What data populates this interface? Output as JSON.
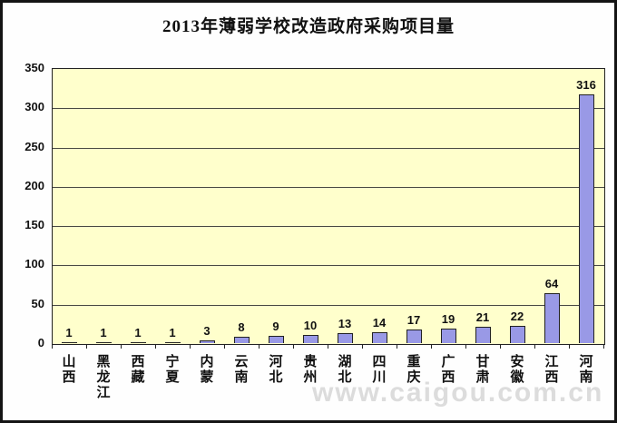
{
  "title": "2013年薄弱学校改造政府采购项目量",
  "watermark": "www.caigou.com.cn",
  "colors": {
    "plot_background": "#ffffcc",
    "bar_fill": "#9999e6",
    "bar_border": "#222222",
    "gridline": "#4a4a44",
    "frame_border": "#141414",
    "watermark_text": "#dcdcdc"
  },
  "chart_data": {
    "type": "bar",
    "title": "2013年薄弱学校改造政府采购项目量",
    "categories": [
      "山西",
      "黑龙江",
      "西藏",
      "宁夏",
      "内蒙",
      "云南",
      "河北",
      "贵州",
      "湖北",
      "四川",
      "重庆",
      "广西",
      "甘肃",
      "安徽",
      "江西",
      "河南"
    ],
    "values": [
      1,
      1,
      1,
      1,
      3,
      8,
      9,
      10,
      13,
      14,
      17,
      19,
      21,
      22,
      64,
      316
    ],
    "xlabel": "",
    "ylabel": "",
    "ylim": [
      0,
      350
    ],
    "yticks": [
      0,
      50,
      100,
      150,
      200,
      250,
      300,
      350
    ],
    "grid": true,
    "legend": "none",
    "bar_labels_shown": true,
    "x_label_orientation": "vertical"
  }
}
